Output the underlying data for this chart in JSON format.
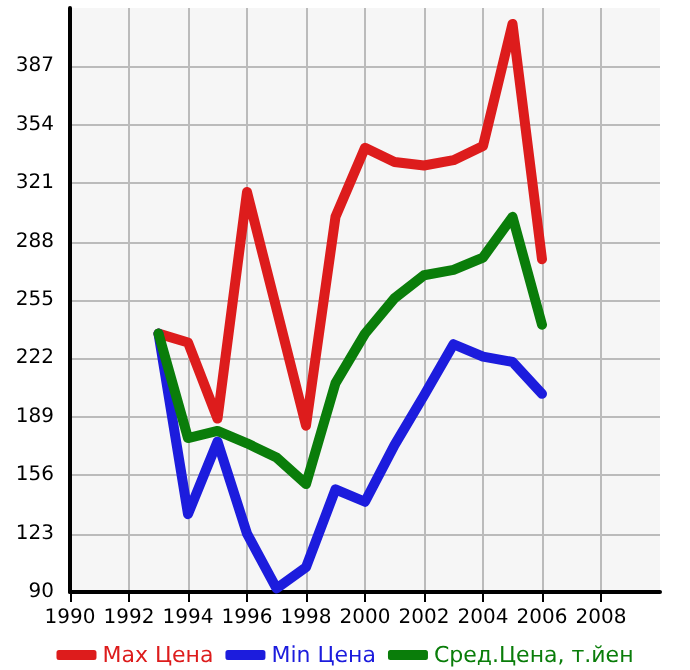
{
  "chart_data": {
    "type": "line",
    "x": [
      1993,
      1994,
      1995,
      1996,
      1997,
      1998,
      1999,
      2000,
      2001,
      2002,
      2003,
      2004,
      2005,
      2006
    ],
    "series": [
      {
        "name": "Max Цена",
        "color": "#dd1c1c",
        "values": [
          236,
          231,
          188,
          316,
          250,
          184,
          302,
          341,
          333,
          331,
          334,
          342,
          411,
          278
        ]
      },
      {
        "name": "Min Цена",
        "color": "#1c1cdd",
        "values": [
          236,
          134,
          175,
          123,
          92,
          104,
          148,
          141,
          173,
          201,
          230,
          223,
          220,
          202
        ]
      },
      {
        "name": "Сред.Цена, т.йен",
        "color": "#0a7d0a",
        "values": [
          236,
          177,
          181,
          174,
          166,
          151,
          208,
          236,
          256,
          269,
          272,
          279,
          302,
          241
        ]
      }
    ],
    "xlim": [
      1990,
      2010
    ],
    "xticks": [
      1990,
      1992,
      1994,
      1996,
      1998,
      2000,
      2002,
      2004,
      2006,
      2008
    ],
    "ylim": [
      90,
      420
    ],
    "yticks": [
      90,
      123,
      156,
      189,
      222,
      255,
      288,
      321,
      354,
      387
    ],
    "grid": true,
    "legend": "bottom",
    "marker": "none",
    "line_style": "solid"
  }
}
